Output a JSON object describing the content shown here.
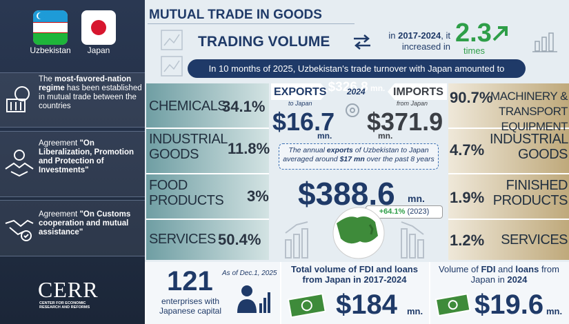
{
  "sidebar": {
    "flags": [
      {
        "label": "Uzbekistan"
      },
      {
        "label": "Japan"
      }
    ],
    "agreements": [
      {
        "parts": [
          "The ",
          "most-favored-nation regime",
          " has been established in mutual trade between the countries"
        ]
      },
      {
        "parts": [
          "Agreement ",
          "\"On Liberalization, Promotion and Protection of Investments\""
        ]
      },
      {
        "parts": [
          "Agreement ",
          "\"On Customs cooperation and mutual assistance\""
        ]
      }
    ],
    "logo": {
      "name": "CERR",
      "subtitle": "CENTER FOR ECONOMIC RESEARCH AND REFORMS"
    }
  },
  "header": {
    "title": "MUTUAL TRADE IN GOODS",
    "trading_volume": "TRADING VOLUME",
    "growth_text": [
      "in ",
      "2017-2024",
      ", it increased in"
    ],
    "growth_value": "2.3",
    "growth_unit": "times",
    "banner": [
      "In 10 months of 2025, Uzbekistan's trade turnover with Japan amounted to ",
      "$326.8",
      " mn."
    ]
  },
  "year": "2024",
  "exports": {
    "label": "EXPORTS",
    "sub": "to Japan",
    "value": "$16.7",
    "unit": "mn.",
    "items": [
      {
        "name": "CHEMICALS",
        "share": "34.1%"
      },
      {
        "name": "INDUSTRIAL GOODS",
        "share": "11.8%"
      },
      {
        "name": "FOOD PRODUCTS",
        "share": "3%"
      },
      {
        "name": "SERVICES",
        "share": "50.4%"
      }
    ]
  },
  "imports": {
    "label": "IMPORTS",
    "sub": "from Japan",
    "value": "$371.9",
    "unit": "mn.",
    "items": [
      {
        "name": "MACHINERY & TRANSPORT EQUIPMENT",
        "share": "90.7%"
      },
      {
        "name": "INDUSTRIAL GOODS",
        "share": "4.7%"
      },
      {
        "name": "FINISHED PRODUCTS",
        "share": "1.9%"
      },
      {
        "name": "SERVICES",
        "share": "1.2%"
      }
    ]
  },
  "note": [
    "The annual ",
    "exports",
    " of Uzbekistan to Japan averaged around ",
    "$17 mn",
    " over the past 8 years"
  ],
  "total": {
    "value": "$388.6",
    "unit": "mn.",
    "growth": "+64.1%",
    "growth_year": "(2023)"
  },
  "enterprises": {
    "count": "121",
    "date": "As of Dec.1, 2025",
    "label": "enterprises with Japanese capital"
  },
  "fdi_total": {
    "title": "Total volume of FDI and loans from Japan in 2017-2024",
    "value": "$184",
    "unit": "mn."
  },
  "fdi_2024": {
    "title": [
      "Volume of ",
      "FDI",
      " and ",
      "loans",
      " from Japan in ",
      "2024"
    ],
    "value": "$19.6",
    "unit": "mn."
  }
}
